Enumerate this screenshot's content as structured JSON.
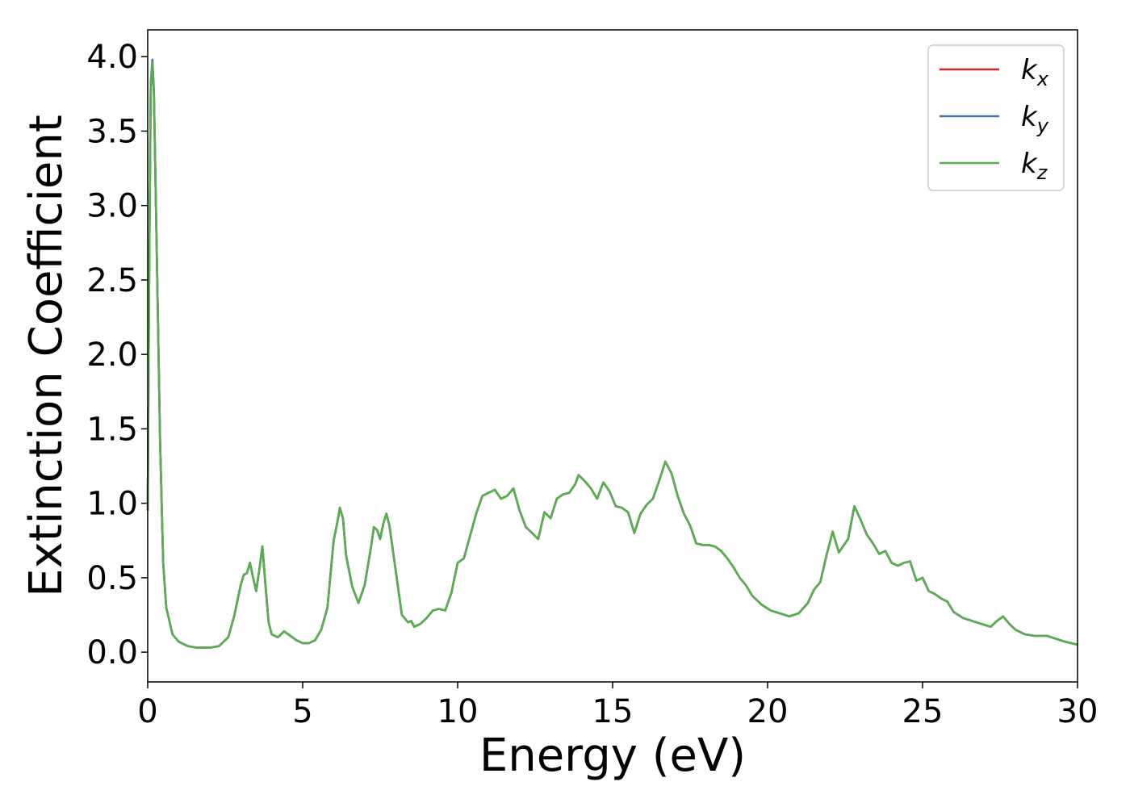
{
  "chart_data": {
    "type": "line",
    "xlabel": "Energy (eV)",
    "ylabel": "Extinction Coefficient",
    "xlim": [
      0,
      30
    ],
    "ylim": [
      -0.2,
      4.18
    ],
    "xticks": [
      "0",
      "5",
      "10",
      "15",
      "20",
      "25",
      "30"
    ],
    "yticks": [
      "0.0",
      "0.5",
      "1.0",
      "1.5",
      "2.0",
      "2.5",
      "3.0",
      "3.5",
      "4.0"
    ],
    "grid": false,
    "legend_position": "top-right",
    "series": [
      {
        "name": "k",
        "subscript": "x",
        "color": "#d62728"
      },
      {
        "name": "k",
        "subscript": "y",
        "color": "#3b75af"
      },
      {
        "name": "k",
        "subscript": "z",
        "color": "#5aae4f"
      }
    ],
    "points": [
      [
        0.0,
        0.95
      ],
      [
        0.05,
        2.6
      ],
      [
        0.1,
        3.8
      ],
      [
        0.15,
        3.96
      ],
      [
        0.2,
        3.75
      ],
      [
        0.3,
        2.6
      ],
      [
        0.4,
        1.4
      ],
      [
        0.5,
        0.6
      ],
      [
        0.6,
        0.3
      ],
      [
        0.8,
        0.12
      ],
      [
        1.0,
        0.07
      ],
      [
        1.3,
        0.04
      ],
      [
        1.6,
        0.03
      ],
      [
        2.0,
        0.03
      ],
      [
        2.3,
        0.04
      ],
      [
        2.6,
        0.1
      ],
      [
        2.8,
        0.25
      ],
      [
        3.0,
        0.45
      ],
      [
        3.1,
        0.52
      ],
      [
        3.2,
        0.53
      ],
      [
        3.3,
        0.6
      ],
      [
        3.4,
        0.5
      ],
      [
        3.5,
        0.41
      ],
      [
        3.6,
        0.55
      ],
      [
        3.7,
        0.71
      ],
      [
        3.8,
        0.45
      ],
      [
        3.9,
        0.2
      ],
      [
        4.0,
        0.12
      ],
      [
        4.2,
        0.1
      ],
      [
        4.4,
        0.14
      ],
      [
        4.6,
        0.11
      ],
      [
        4.8,
        0.08
      ],
      [
        5.0,
        0.06
      ],
      [
        5.2,
        0.06
      ],
      [
        5.4,
        0.08
      ],
      [
        5.6,
        0.15
      ],
      [
        5.8,
        0.3
      ],
      [
        6.0,
        0.75
      ],
      [
        6.1,
        0.85
      ],
      [
        6.2,
        0.97
      ],
      [
        6.3,
        0.9
      ],
      [
        6.4,
        0.65
      ],
      [
        6.6,
        0.44
      ],
      [
        6.8,
        0.33
      ],
      [
        7.0,
        0.45
      ],
      [
        7.2,
        0.7
      ],
      [
        7.3,
        0.84
      ],
      [
        7.4,
        0.82
      ],
      [
        7.5,
        0.76
      ],
      [
        7.6,
        0.86
      ],
      [
        7.7,
        0.93
      ],
      [
        7.8,
        0.85
      ],
      [
        8.0,
        0.55
      ],
      [
        8.2,
        0.25
      ],
      [
        8.4,
        0.2
      ],
      [
        8.5,
        0.21
      ],
      [
        8.6,
        0.17
      ],
      [
        8.8,
        0.19
      ],
      [
        9.0,
        0.23
      ],
      [
        9.2,
        0.28
      ],
      [
        9.4,
        0.29
      ],
      [
        9.6,
        0.28
      ],
      [
        9.8,
        0.4
      ],
      [
        10.0,
        0.6
      ],
      [
        10.2,
        0.63
      ],
      [
        10.4,
        0.78
      ],
      [
        10.6,
        0.93
      ],
      [
        10.8,
        1.05
      ],
      [
        11.0,
        1.07
      ],
      [
        11.2,
        1.09
      ],
      [
        11.4,
        1.03
      ],
      [
        11.6,
        1.05
      ],
      [
        11.8,
        1.1
      ],
      [
        12.0,
        0.95
      ],
      [
        12.2,
        0.84
      ],
      [
        12.4,
        0.8
      ],
      [
        12.6,
        0.76
      ],
      [
        12.8,
        0.94
      ],
      [
        13.0,
        0.9
      ],
      [
        13.2,
        1.03
      ],
      [
        13.4,
        1.06
      ],
      [
        13.6,
        1.07
      ],
      [
        13.8,
        1.13
      ],
      [
        13.9,
        1.19
      ],
      [
        14.1,
        1.15
      ],
      [
        14.3,
        1.1
      ],
      [
        14.5,
        1.03
      ],
      [
        14.7,
        1.14
      ],
      [
        14.9,
        1.08
      ],
      [
        15.1,
        0.98
      ],
      [
        15.3,
        0.97
      ],
      [
        15.5,
        0.94
      ],
      [
        15.7,
        0.8
      ],
      [
        15.9,
        0.93
      ],
      [
        16.1,
        0.99
      ],
      [
        16.3,
        1.03
      ],
      [
        16.5,
        1.15
      ],
      [
        16.7,
        1.28
      ],
      [
        16.9,
        1.2
      ],
      [
        17.1,
        1.05
      ],
      [
        17.3,
        0.93
      ],
      [
        17.5,
        0.85
      ],
      [
        17.7,
        0.73
      ],
      [
        17.9,
        0.72
      ],
      [
        18.1,
        0.72
      ],
      [
        18.3,
        0.71
      ],
      [
        18.5,
        0.68
      ],
      [
        18.7,
        0.63
      ],
      [
        18.9,
        0.57
      ],
      [
        19.1,
        0.5
      ],
      [
        19.3,
        0.45
      ],
      [
        19.5,
        0.38
      ],
      [
        19.8,
        0.32
      ],
      [
        20.1,
        0.28
      ],
      [
        20.4,
        0.26
      ],
      [
        20.7,
        0.24
      ],
      [
        21.0,
        0.26
      ],
      [
        21.3,
        0.33
      ],
      [
        21.5,
        0.42
      ],
      [
        21.7,
        0.47
      ],
      [
        21.9,
        0.65
      ],
      [
        22.1,
        0.81
      ],
      [
        22.3,
        0.67
      ],
      [
        22.5,
        0.73
      ],
      [
        22.6,
        0.76
      ],
      [
        22.8,
        0.98
      ],
      [
        23.0,
        0.89
      ],
      [
        23.2,
        0.79
      ],
      [
        23.4,
        0.73
      ],
      [
        23.6,
        0.66
      ],
      [
        23.8,
        0.68
      ],
      [
        24.0,
        0.6
      ],
      [
        24.2,
        0.58
      ],
      [
        24.4,
        0.6
      ],
      [
        24.6,
        0.61
      ],
      [
        24.8,
        0.48
      ],
      [
        25.0,
        0.5
      ],
      [
        25.2,
        0.41
      ],
      [
        25.4,
        0.39
      ],
      [
        25.6,
        0.36
      ],
      [
        25.8,
        0.34
      ],
      [
        26.0,
        0.27
      ],
      [
        26.3,
        0.23
      ],
      [
        26.6,
        0.21
      ],
      [
        26.9,
        0.19
      ],
      [
        27.2,
        0.17
      ],
      [
        27.4,
        0.21
      ],
      [
        27.6,
        0.24
      ],
      [
        27.8,
        0.19
      ],
      [
        28.0,
        0.15
      ],
      [
        28.3,
        0.12
      ],
      [
        28.6,
        0.11
      ],
      [
        29.0,
        0.11
      ],
      [
        29.3,
        0.09
      ],
      [
        29.6,
        0.07
      ],
      [
        30.0,
        0.05
      ]
    ]
  }
}
